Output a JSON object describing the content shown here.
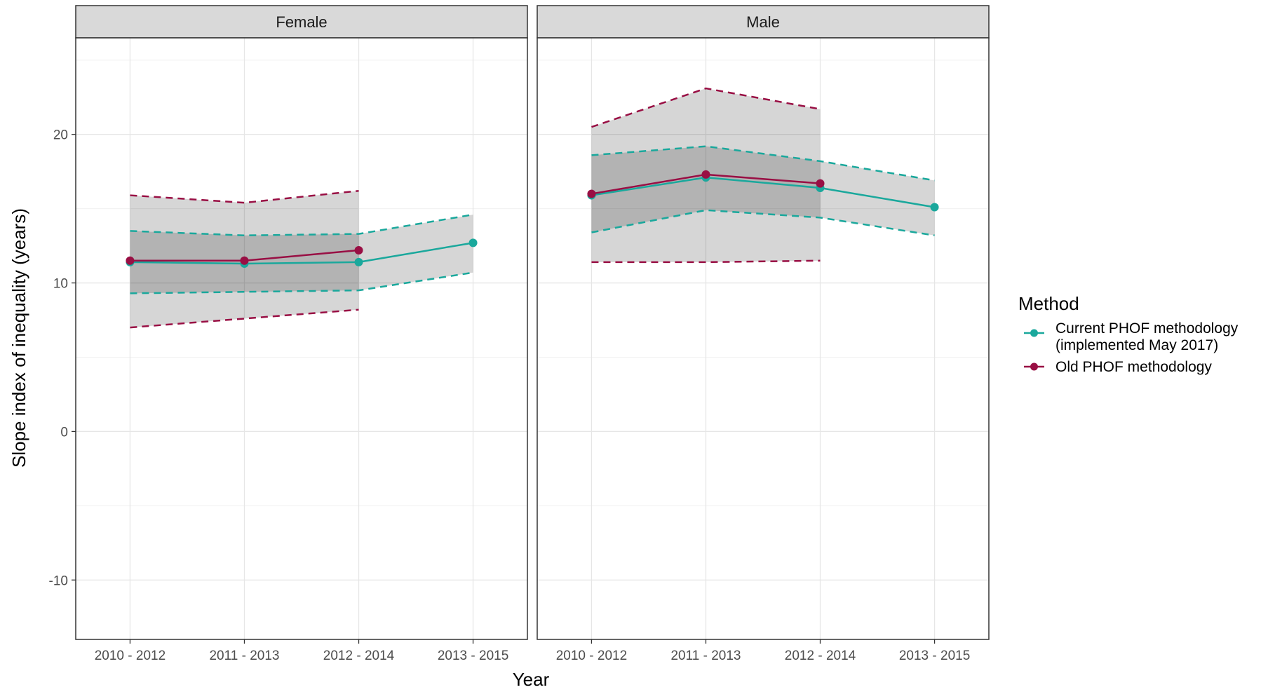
{
  "chart_data": {
    "type": "line",
    "facets": [
      "Female",
      "Male"
    ],
    "categories": [
      "2010 - 2012",
      "2011 - 2013",
      "2012 - 2014",
      "2013 - 2015"
    ],
    "xlabel": "Year",
    "ylabel": "Slope index of inequality (years)",
    "ylim": [
      -14,
      26.5
    ],
    "yticks": [
      -10,
      0,
      10,
      20
    ],
    "grid": true,
    "legend": {
      "title": "Method",
      "position": "right",
      "entries": [
        {
          "line1": "Current PHOF methodology",
          "line2": "(implemented May 2017)"
        },
        {
          "line1": "Old PHOF methodology",
          "line2": ""
        }
      ]
    },
    "series": [
      {
        "key": "current",
        "color": "#1aa89c",
        "data": {
          "Female": {
            "values": [
              11.4,
              11.3,
              11.4,
              12.7
            ],
            "lower": [
              9.3,
              9.4,
              9.5,
              10.7
            ],
            "upper": [
              13.5,
              13.2,
              13.3,
              14.6
            ]
          },
          "Male": {
            "values": [
              15.9,
              17.1,
              16.4,
              15.1
            ],
            "lower": [
              13.4,
              14.9,
              14.4,
              13.2
            ],
            "upper": [
              18.6,
              19.2,
              18.2,
              16.9
            ]
          }
        }
      },
      {
        "key": "old",
        "color": "#990f44",
        "data": {
          "Female": {
            "values": [
              11.5,
              11.5,
              12.2,
              null
            ],
            "lower": [
              7.0,
              7.6,
              8.2,
              null
            ],
            "upper": [
              15.9,
              15.4,
              16.2,
              null
            ]
          },
          "Male": {
            "values": [
              16.0,
              17.3,
              16.7,
              null
            ],
            "lower": [
              11.4,
              11.4,
              11.5,
              null
            ],
            "upper": [
              20.5,
              23.1,
              21.7,
              null
            ]
          }
        }
      }
    ]
  }
}
